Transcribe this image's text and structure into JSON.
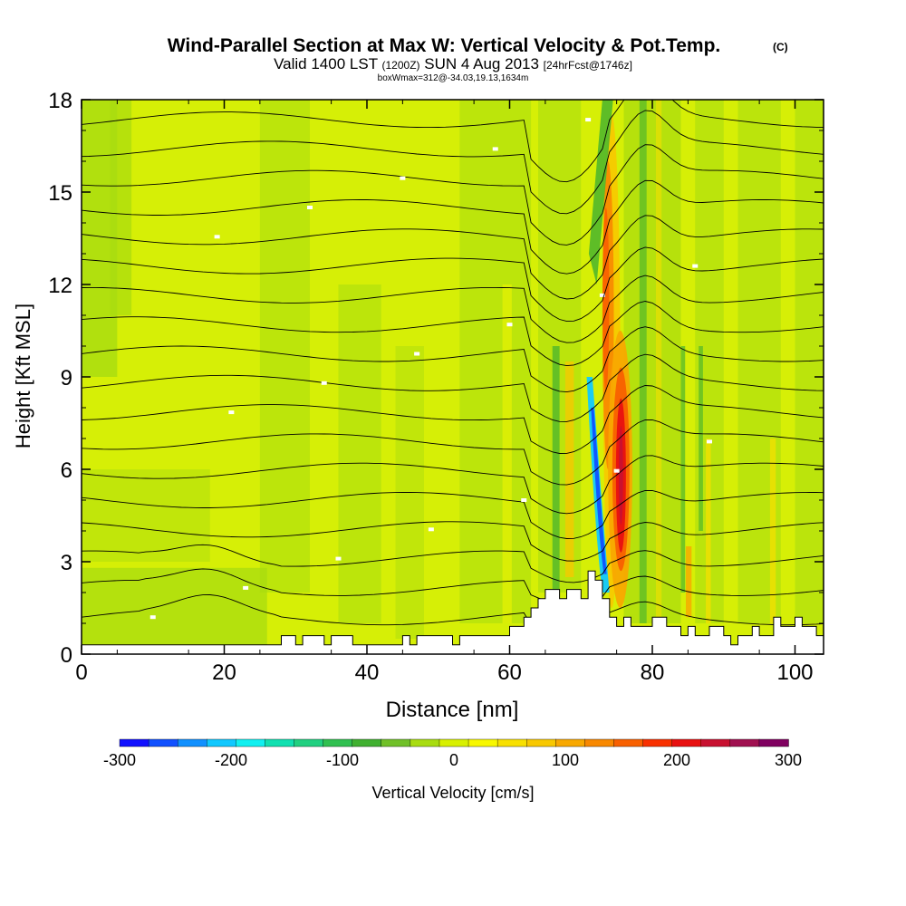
{
  "header": {
    "title": "Wind-Parallel Section at Max W: Vertical Velocity & Pot.Temp.",
    "copyright": "(C)",
    "valid_prefix": "Valid 1400 LST",
    "valid_utc": "(1200Z)",
    "valid_date": "SUN 4 Aug 2013",
    "forecast": "[24hrFcst@1746z]",
    "box_info": "boxWmax=312@-34.03,19.13,1634m"
  },
  "colorbar": {
    "label": "Vertical Velocity [cm/s]",
    "tick_labels": [
      "-300",
      "-200",
      "-100",
      "0",
      "100",
      "200",
      "300"
    ],
    "colors": [
      "#1010ff",
      "#1050ff",
      "#1090ff",
      "#10c8ff",
      "#10f0f0",
      "#10e0b0",
      "#20d080",
      "#30c050",
      "#40b030",
      "#70c028",
      "#a8dc10",
      "#d8f000",
      "#f8f800",
      "#f8e000",
      "#f8c800",
      "#f8a800",
      "#f88800",
      "#f86000",
      "#f83000",
      "#e81010",
      "#c81030",
      "#a01050",
      "#800060"
    ]
  },
  "chart_data": {
    "type": "heatmap",
    "title": "Wind-Parallel Section at Max W: Vertical Velocity & Pot.Temp.",
    "xlabel": "Distance [nm]",
    "ylabel": "Height [Kft MSL]",
    "xlim": [
      0,
      104
    ],
    "ylim": [
      0,
      18
    ],
    "x_ticks": [
      "0",
      "20",
      "40",
      "60",
      "80",
      "100"
    ],
    "y_ticks": [
      "0",
      "3",
      "6",
      "9",
      "12",
      "15",
      "18"
    ],
    "color_variable": "Vertical Velocity [cm/s]",
    "color_range": [
      -300,
      300
    ],
    "contour_variable": "Potential Temperature",
    "max_w": {
      "value": 312,
      "lat": -34.03,
      "lon": 19.13,
      "height_m": 1634
    },
    "features": [
      {
        "name": "updraft core",
        "x": 75,
        "y_range": [
          3,
          9
        ],
        "w_max": 300
      },
      {
        "name": "updraft upper",
        "x": 72.5,
        "y_range": [
          9,
          13
        ],
        "w_max": 200
      },
      {
        "name": "downdraft core",
        "x": 71.5,
        "y_range": [
          2,
          8
        ],
        "w_min": -220
      }
    ],
    "terrain_profile": [
      [
        0,
        0.3
      ],
      [
        28,
        0.3
      ],
      [
        28,
        0.6
      ],
      [
        30,
        0.6
      ],
      [
        30,
        0.3
      ],
      [
        31,
        0.3
      ],
      [
        31,
        0.6
      ],
      [
        34,
        0.6
      ],
      [
        34,
        0.3
      ],
      [
        35,
        0.3
      ],
      [
        35,
        0.6
      ],
      [
        38,
        0.6
      ],
      [
        38,
        0.3
      ],
      [
        45,
        0.3
      ],
      [
        45,
        0.6
      ],
      [
        46,
        0.6
      ],
      [
        46,
        0.3
      ],
      [
        47,
        0.3
      ],
      [
        47,
        0.6
      ],
      [
        52,
        0.6
      ],
      [
        52,
        0.3
      ],
      [
        53,
        0.3
      ],
      [
        53,
        0.6
      ],
      [
        60,
        0.6
      ],
      [
        60,
        0.9
      ],
      [
        62,
        0.9
      ],
      [
        62,
        1.2
      ],
      [
        63,
        1.2
      ],
      [
        63,
        1.5
      ],
      [
        64,
        1.5
      ],
      [
        64,
        1.8
      ],
      [
        65,
        1.8
      ],
      [
        65,
        2.1
      ],
      [
        67,
        2.1
      ],
      [
        67,
        1.8
      ],
      [
        68,
        1.8
      ],
      [
        68,
        2.1
      ],
      [
        70,
        2.1
      ],
      [
        70,
        1.8
      ],
      [
        71,
        1.8
      ],
      [
        71,
        2.7
      ],
      [
        72,
        2.7
      ],
      [
        72,
        2.4
      ],
      [
        73,
        2.4
      ],
      [
        73,
        1.8
      ],
      [
        74,
        1.8
      ],
      [
        74,
        1.2
      ],
      [
        75,
        1.2
      ],
      [
        75,
        0.9
      ],
      [
        76,
        0.9
      ],
      [
        76,
        1.2
      ],
      [
        77,
        1.2
      ],
      [
        77,
        0.9
      ],
      [
        80,
        0.9
      ],
      [
        80,
        1.2
      ],
      [
        82,
        1.2
      ],
      [
        82,
        0.9
      ],
      [
        84,
        0.9
      ],
      [
        84,
        0.6
      ],
      [
        85,
        0.6
      ],
      [
        85,
        0.9
      ],
      [
        86,
        0.9
      ],
      [
        86,
        0.6
      ],
      [
        88,
        0.6
      ],
      [
        88,
        0.9
      ],
      [
        90,
        0.9
      ],
      [
        90,
        0.6
      ],
      [
        91,
        0.6
      ],
      [
        91,
        0.3
      ],
      [
        92,
        0.3
      ],
      [
        92,
        0.6
      ],
      [
        94,
        0.6
      ],
      [
        94,
        0.9
      ],
      [
        95,
        0.9
      ],
      [
        95,
        0.6
      ],
      [
        97,
        0.6
      ],
      [
        97,
        1.2
      ],
      [
        98,
        1.2
      ],
      [
        98,
        0.9
      ],
      [
        100,
        0.9
      ],
      [
        100,
        1.2
      ],
      [
        101,
        1.2
      ],
      [
        101,
        0.9
      ],
      [
        103,
        0.9
      ],
      [
        103,
        0.6
      ],
      [
        104,
        0.6
      ]
    ]
  }
}
